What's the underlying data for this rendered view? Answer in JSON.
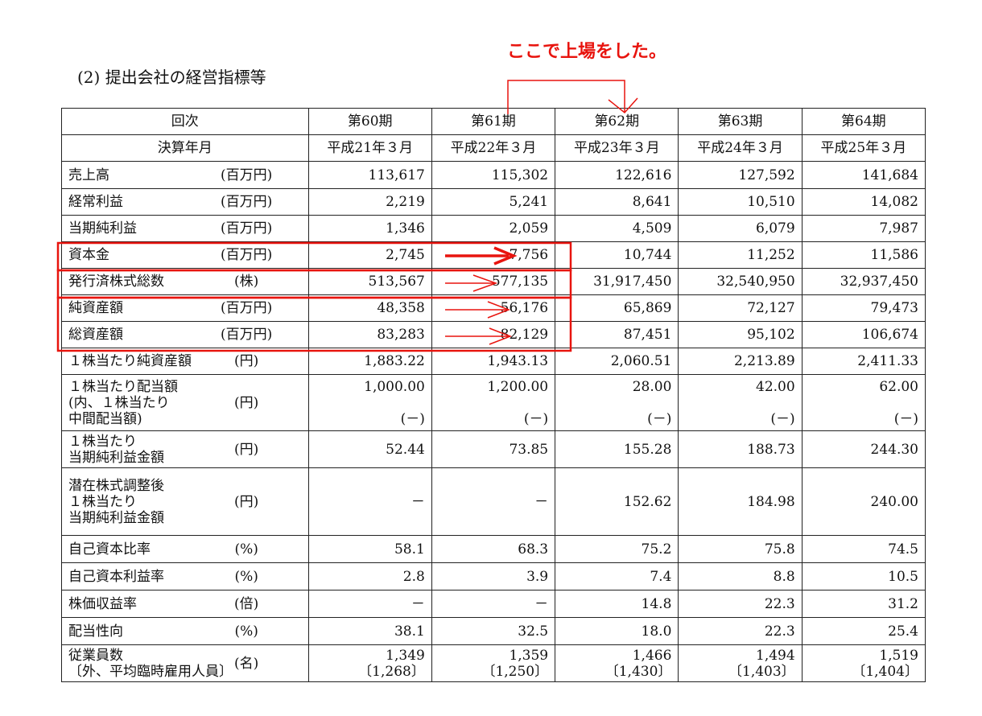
{
  "title": "(2) 提出会社の経営指標等",
  "annotation": "ここで上場をした。",
  "table": {
    "header_row1": {
      "label": "回次",
      "periods": [
        "第60期",
        "第61期",
        "第62期",
        "第63期",
        "第64期"
      ]
    },
    "header_row2": {
      "label": "決算年月",
      "dates": [
        "平成21年３月",
        "平成22年３月",
        "平成23年３月",
        "平成24年３月",
        "平成25年３月"
      ]
    },
    "rows": [
      {
        "item": [
          "売上高"
        ],
        "unit": "(百万円)",
        "values": [
          [
            "113,617"
          ],
          [
            "115,302"
          ],
          [
            "122,616"
          ],
          [
            "127,592"
          ],
          [
            "141,684"
          ]
        ]
      },
      {
        "item": [
          "経常利益"
        ],
        "unit": "(百万円)",
        "values": [
          [
            "2,219"
          ],
          [
            "5,241"
          ],
          [
            "8,641"
          ],
          [
            "10,510"
          ],
          [
            "14,082"
          ]
        ]
      },
      {
        "item": [
          "当期純利益"
        ],
        "unit": "(百万円)",
        "values": [
          [
            "1,346"
          ],
          [
            "2,059"
          ],
          [
            "4,509"
          ],
          [
            "6,079"
          ],
          [
            "7,987"
          ]
        ]
      },
      {
        "item": [
          "資本金"
        ],
        "unit": "(百万円)",
        "values": [
          [
            "2,745"
          ],
          [
            "7,756"
          ],
          [
            "10,744"
          ],
          [
            "11,252"
          ],
          [
            "11,586"
          ]
        ]
      },
      {
        "item": [
          "発行済株式総数"
        ],
        "unit": "(株)",
        "values": [
          [
            "513,567"
          ],
          [
            "577,135"
          ],
          [
            "31,917,450"
          ],
          [
            "32,540,950"
          ],
          [
            "32,937,450"
          ]
        ]
      },
      {
        "item": [
          "純資産額"
        ],
        "unit": "(百万円)",
        "values": [
          [
            "48,358"
          ],
          [
            "56,176"
          ],
          [
            "65,869"
          ],
          [
            "72,127"
          ],
          [
            "79,473"
          ]
        ]
      },
      {
        "item": [
          "総資産額"
        ],
        "unit": "(百万円)",
        "values": [
          [
            "83,283"
          ],
          [
            "82,129"
          ],
          [
            "87,451"
          ],
          [
            "95,102"
          ],
          [
            "106,674"
          ]
        ]
      },
      {
        "item": [
          "１株当たり純資産額"
        ],
        "unit": "(円)",
        "values": [
          [
            "1,883.22"
          ],
          [
            "1,943.13"
          ],
          [
            "2,060.51"
          ],
          [
            "2,213.89"
          ],
          [
            "2,411.33"
          ]
        ]
      },
      {
        "item": [
          "１株当たり配当額",
          "(内、１株当たり",
          " 中間配当額)"
        ],
        "unit": "(円)",
        "values": [
          [
            "1,000.00",
            "",
            "(－)"
          ],
          [
            "1,200.00",
            "",
            "(－)"
          ],
          [
            "28.00",
            "",
            "(－)"
          ],
          [
            "42.00",
            "",
            "(－)"
          ],
          [
            "62.00",
            "",
            "(－)"
          ]
        ]
      },
      {
        "item": [
          "１株当たり",
          "当期純利益金額"
        ],
        "unit": "(円)",
        "values": [
          [
            "52.44"
          ],
          [
            "73.85"
          ],
          [
            "155.28"
          ],
          [
            "188.73"
          ],
          [
            "244.30"
          ]
        ]
      },
      {
        "item": [
          "潜在株式調整後",
          "１株当たり",
          "当期純利益金額"
        ],
        "unit": "(円)",
        "values": [
          [
            "－"
          ],
          [
            "－"
          ],
          [
            "152.62"
          ],
          [
            "184.98"
          ],
          [
            "240.00"
          ]
        ]
      },
      {
        "item": [
          "自己資本比率"
        ],
        "unit": "(%)",
        "values": [
          [
            "58.1"
          ],
          [
            "68.3"
          ],
          [
            "75.2"
          ],
          [
            "75.8"
          ],
          [
            "74.5"
          ]
        ]
      },
      {
        "item": [
          "自己資本利益率"
        ],
        "unit": "(%)",
        "values": [
          [
            "2.8"
          ],
          [
            "3.9"
          ],
          [
            "7.4"
          ],
          [
            "8.8"
          ],
          [
            "10.5"
          ]
        ]
      },
      {
        "item": [
          "株価収益率"
        ],
        "unit": "(倍)",
        "values": [
          [
            "－"
          ],
          [
            "－"
          ],
          [
            "14.8"
          ],
          [
            "22.3"
          ],
          [
            "31.2"
          ]
        ]
      },
      {
        "item": [
          "配当性向"
        ],
        "unit": "(%)",
        "values": [
          [
            "38.1"
          ],
          [
            "32.5"
          ],
          [
            "18.0"
          ],
          [
            "22.3"
          ],
          [
            "25.4"
          ]
        ]
      },
      {
        "item": [
          "従業員数",
          "〔外、平均臨時雇用人員〕"
        ],
        "unit": "(名)",
        "values": [
          [
            "1,349",
            "〔1,268〕"
          ],
          [
            "1,359",
            "〔1,250〕"
          ],
          [
            "1,466",
            "〔1,430〕"
          ],
          [
            "1,494",
            "〔1,403〕"
          ],
          [
            "1,519",
            "〔1,404〕"
          ]
        ]
      }
    ]
  },
  "colors": {
    "highlight": "#e8140e",
    "text": "#111111"
  }
}
